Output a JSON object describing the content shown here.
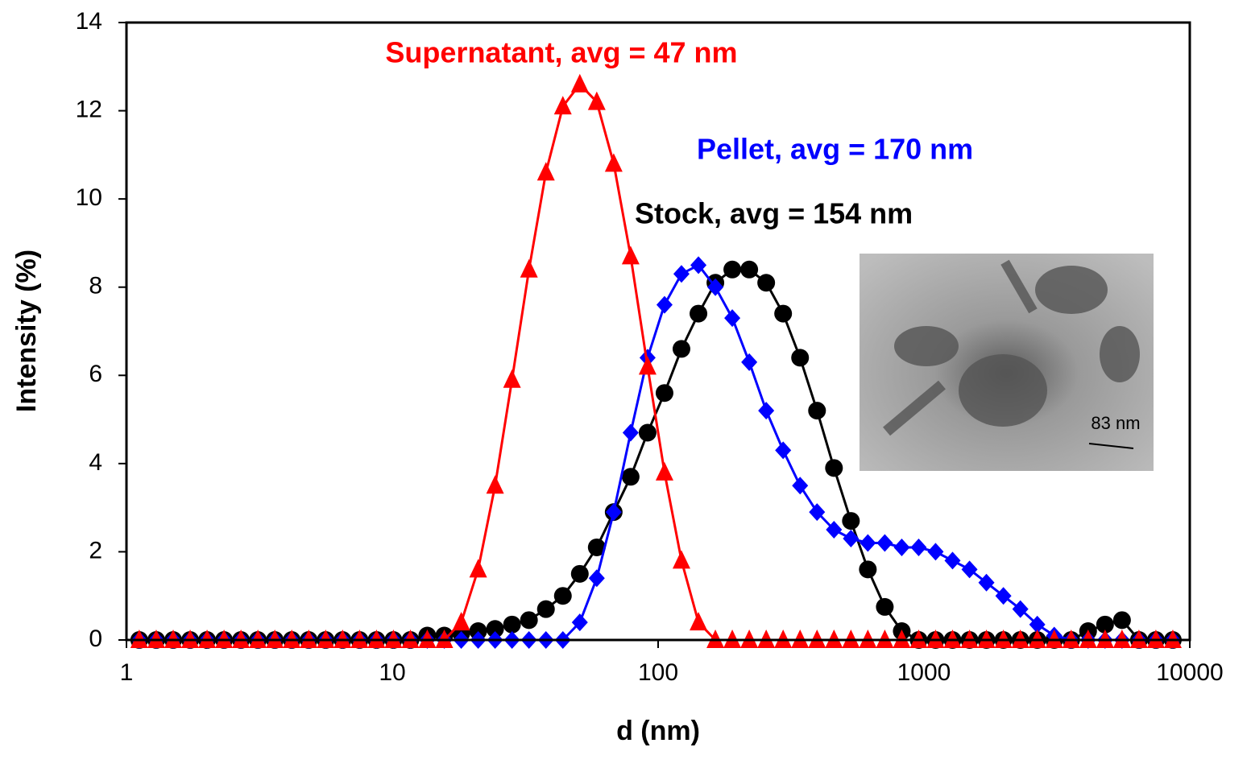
{
  "chart_data": {
    "type": "line",
    "xlabel": "d (nm)",
    "ylabel": "Intensity (%)",
    "xscale": "log",
    "xlim": [
      1,
      10000
    ],
    "xticks": [
      1,
      10,
      100,
      1000,
      10000
    ],
    "ylim": [
      0,
      14
    ],
    "yticks": [
      0,
      2,
      4,
      6,
      8,
      10,
      12,
      14
    ],
    "grid": false,
    "x": [
      1.117,
      1.294,
      1.499,
      1.736,
      2.01,
      2.328,
      2.696,
      3.122,
      3.615,
      4.187,
      4.849,
      5.615,
      6.503,
      7.531,
      8.721,
      10.1,
      11.7,
      13.54,
      15.69,
      18.17,
      21.04,
      24.36,
      28.21,
      32.67,
      37.84,
      43.82,
      50.75,
      58.77,
      68.06,
      78.82,
      91.28,
      105.7,
      122.4,
      141.8,
      164.2,
      190.1,
      220.2,
      255,
      295.3,
      342,
      396.1,
      458.7,
      531.2,
      615.1,
      712.4,
      825,
      955.4,
      1106,
      1281,
      1484,
      1718,
      1990,
      2305,
      2669,
      3091,
      3580,
      4145,
      4801,
      5560,
      6439,
      7456,
      8635
    ],
    "series": [
      {
        "marker": "circle",
        "color": "#000000",
        "values": [
          0,
          0,
          0,
          0,
          0,
          0,
          0,
          0,
          0,
          0,
          0,
          0,
          0,
          0,
          0,
          0,
          0,
          0.1,
          0.1,
          0.15,
          0.2,
          0.25,
          0.35,
          0.45,
          0.7,
          1.0,
          1.5,
          2.1,
          2.9,
          3.7,
          4.7,
          5.6,
          6.6,
          7.4,
          8.1,
          8.4,
          8.4,
          8.1,
          7.4,
          6.4,
          5.2,
          3.9,
          2.7,
          1.6,
          0.75,
          0.2,
          0,
          0,
          0,
          0,
          0,
          0,
          0,
          0,
          0,
          0,
          0.2,
          0.35,
          0.45,
          0,
          0,
          0
        ]
      },
      {
        "marker": "diamond",
        "color": "#0000ff",
        "values": [
          0,
          0,
          0,
          0,
          0,
          0,
          0,
          0,
          0,
          0,
          0,
          0,
          0,
          0,
          0,
          0,
          0,
          0,
          0,
          0,
          0,
          0,
          0,
          0,
          0,
          0,
          0.4,
          1.4,
          2.9,
          4.7,
          6.4,
          7.6,
          8.3,
          8.5,
          8.0,
          7.3,
          6.3,
          5.2,
          4.3,
          3.5,
          2.9,
          2.5,
          2.3,
          2.2,
          2.2,
          2.1,
          2.1,
          2.0,
          1.8,
          1.6,
          1.3,
          1.0,
          0.7,
          0.35,
          0.1,
          0,
          0,
          0,
          0,
          0,
          0,
          0
        ]
      },
      {
        "marker": "triangle",
        "color": "#ff0000",
        "values": [
          0,
          0,
          0,
          0,
          0,
          0,
          0,
          0,
          0,
          0,
          0,
          0,
          0,
          0,
          0,
          0,
          0,
          0,
          0,
          0.4,
          1.6,
          3.5,
          5.9,
          8.4,
          10.6,
          12.1,
          12.6,
          12.2,
          10.8,
          8.7,
          6.2,
          3.8,
          1.8,
          0.4,
          0,
          0,
          0,
          0,
          0,
          0,
          0,
          0,
          0,
          0,
          0,
          0,
          0,
          0,
          0,
          0,
          0,
          0,
          0,
          0,
          0,
          0,
          0,
          0,
          0,
          0,
          0,
          0
        ]
      }
    ],
    "annotations": [
      {
        "text": "Supernatant, avg = 47 nm",
        "color": "#ff0000"
      },
      {
        "text": "Pellet, avg = 170 nm",
        "color": "#0000ff"
      },
      {
        "text": "Stock, avg = 154 nm",
        "color": "#000000"
      }
    ],
    "inset_scale_label": "83 nm"
  }
}
